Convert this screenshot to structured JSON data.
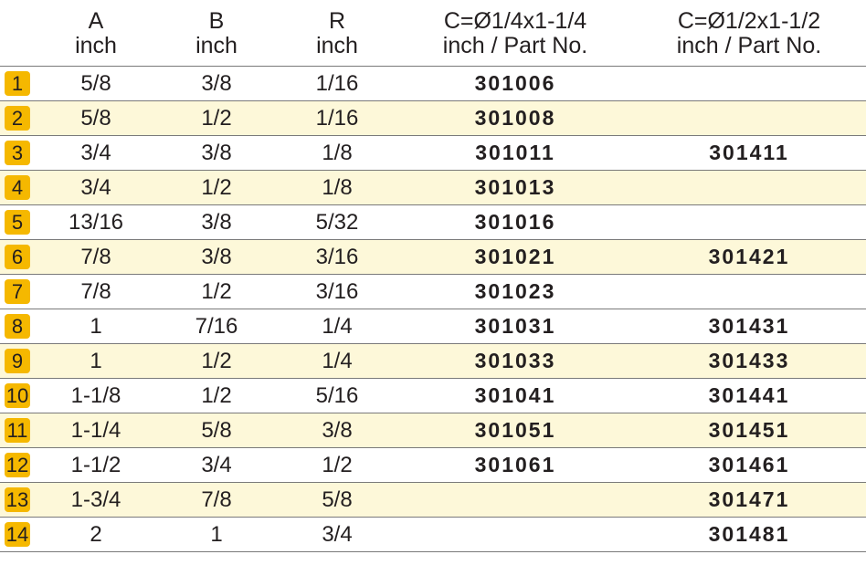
{
  "headers": [
    {
      "line1": "",
      "line2": ""
    },
    {
      "line1": "A",
      "line2": "inch"
    },
    {
      "line1": "B",
      "line2": "inch"
    },
    {
      "line1": "R",
      "line2": "inch"
    },
    {
      "line1": "C=Ø1/4x1-1/4",
      "line2": "inch / Part No."
    },
    {
      "line1": "C=Ø1/2x1-1/2",
      "line2": "inch / Part No."
    }
  ],
  "badge_color": "#f5b800",
  "shade_color": "#fdf8d9",
  "rows": [
    {
      "no": "1",
      "a": "5/8",
      "b": "3/8",
      "r": "1/16",
      "c": "301006",
      "d": "",
      "shaded": false
    },
    {
      "no": "2",
      "a": "5/8",
      "b": "1/2",
      "r": "1/16",
      "c": "301008",
      "d": "",
      "shaded": true
    },
    {
      "no": "3",
      "a": "3/4",
      "b": "3/8",
      "r": "1/8",
      "c": "301011",
      "d": "301411",
      "shaded": false
    },
    {
      "no": "4",
      "a": "3/4",
      "b": "1/2",
      "r": "1/8",
      "c": "301013",
      "d": "",
      "shaded": true
    },
    {
      "no": "5",
      "a": "13/16",
      "b": "3/8",
      "r": "5/32",
      "c": "301016",
      "d": "",
      "shaded": false
    },
    {
      "no": "6",
      "a": "7/8",
      "b": "3/8",
      "r": "3/16",
      "c": "301021",
      "d": "301421",
      "shaded": true
    },
    {
      "no": "7",
      "a": "7/8",
      "b": "1/2",
      "r": "3/16",
      "c": "301023",
      "d": "",
      "shaded": false
    },
    {
      "no": "8",
      "a": "1",
      "b": "7/16",
      "r": "1/4",
      "c": "301031",
      "d": "301431",
      "shaded": false
    },
    {
      "no": "9",
      "a": "1",
      "b": "1/2",
      "r": "1/4",
      "c": "301033",
      "d": "301433",
      "shaded": true
    },
    {
      "no": "10",
      "a": "1-1/8",
      "b": "1/2",
      "r": "5/16",
      "c": "301041",
      "d": "301441",
      "shaded": false
    },
    {
      "no": "11",
      "a": "1-1/4",
      "b": "5/8",
      "r": "3/8",
      "c": "301051",
      "d": "301451",
      "shaded": true
    },
    {
      "no": "12",
      "a": "1-1/2",
      "b": "3/4",
      "r": "1/2",
      "c": "301061",
      "d": "301461",
      "shaded": false
    },
    {
      "no": "13",
      "a": "1-3/4",
      "b": "7/8",
      "r": "5/8",
      "c": "",
      "d": "301471",
      "shaded": true
    },
    {
      "no": "14",
      "a": "2",
      "b": "1",
      "r": "3/4",
      "c": "",
      "d": "301481",
      "shaded": false
    }
  ]
}
